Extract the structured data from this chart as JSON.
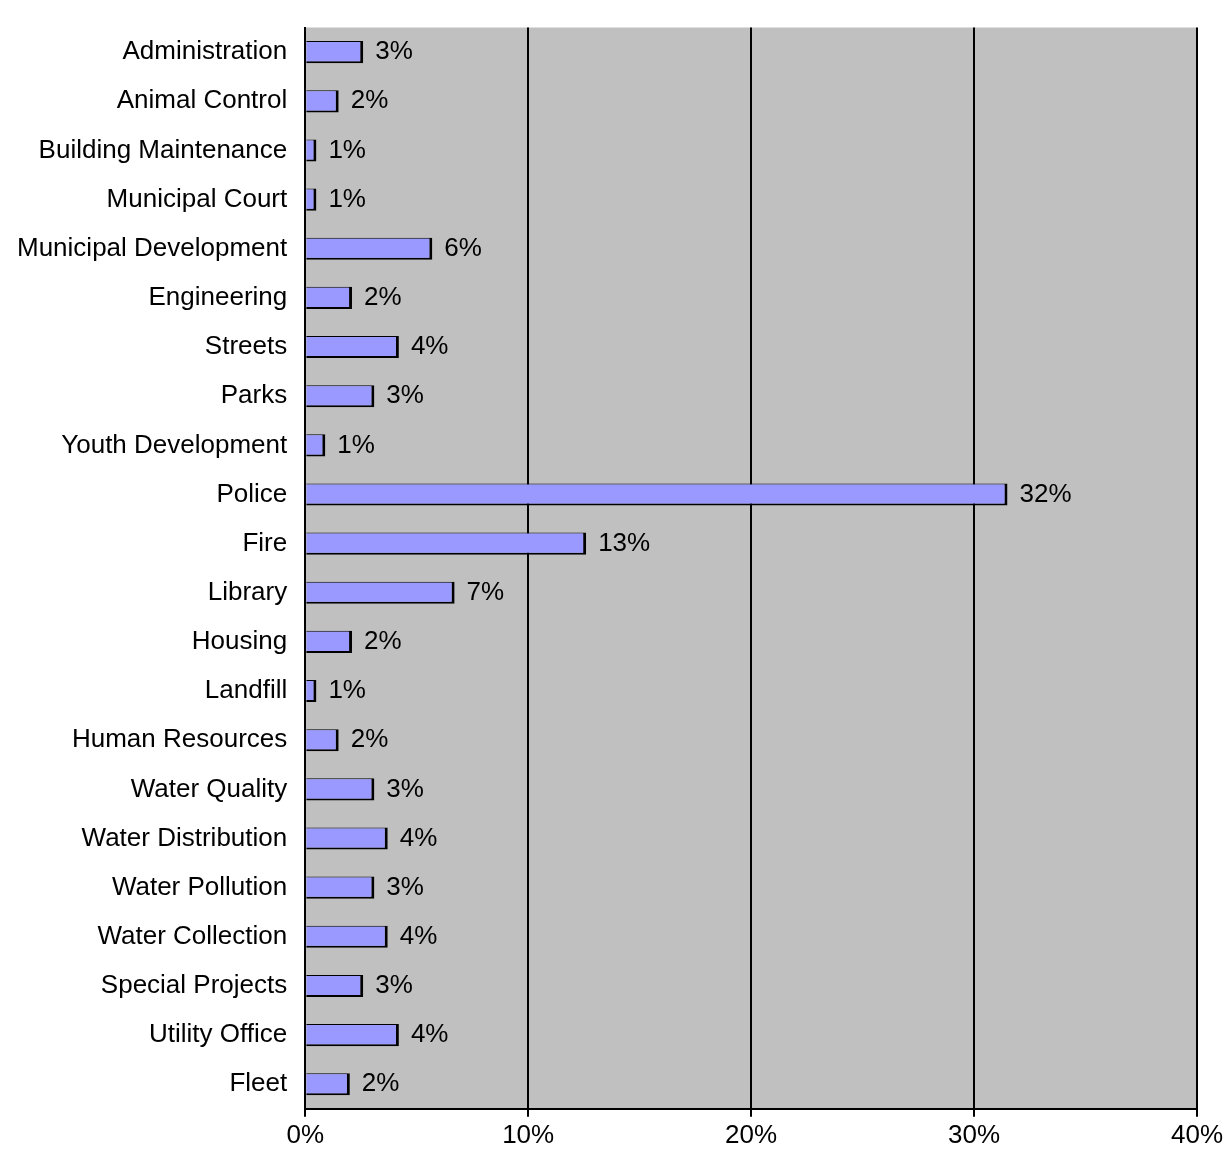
{
  "chart_data": {
    "type": "bar",
    "orientation": "horizontal",
    "categories": [
      "Administration",
      "Animal Control",
      "Building Maintenance",
      "Municipal Court",
      "Municipal Development",
      "Engineering",
      "Streets",
      "Parks",
      "Youth Development",
      "Police",
      "Fire",
      "Library",
      "Housing",
      "Landfill",
      "Human Resources",
      "Water Quality",
      "Water Distribution",
      "Water Pollution",
      "Water Collection",
      "Special Projects",
      "Utility Office",
      "Fleet"
    ],
    "values": [
      2.6,
      1.5,
      0.5,
      0.5,
      5.7,
      2.1,
      4.2,
      3.1,
      0.9,
      31.5,
      12.6,
      6.7,
      2.1,
      0.5,
      1.5,
      3.1,
      3.7,
      3.1,
      3.7,
      2.6,
      4.2,
      2.0
    ],
    "value_labels": [
      "3%",
      "2%",
      "1%",
      "1%",
      "6%",
      "2%",
      "4%",
      "3%",
      "1%",
      "32%",
      "13%",
      "7%",
      "2%",
      "1%",
      "2%",
      "3%",
      "4%",
      "3%",
      "4%",
      "3%",
      "4%",
      "2%"
    ],
    "color": "#9999ff",
    "xlim": [
      0,
      40
    ],
    "xticks": [
      {
        "value": 0,
        "label": "0%"
      },
      {
        "value": 10,
        "label": "10%"
      },
      {
        "value": 20,
        "label": "20%"
      },
      {
        "value": 30,
        "label": "30%"
      },
      {
        "value": 40,
        "label": "40%"
      }
    ],
    "grid": "x",
    "legend": false
  }
}
